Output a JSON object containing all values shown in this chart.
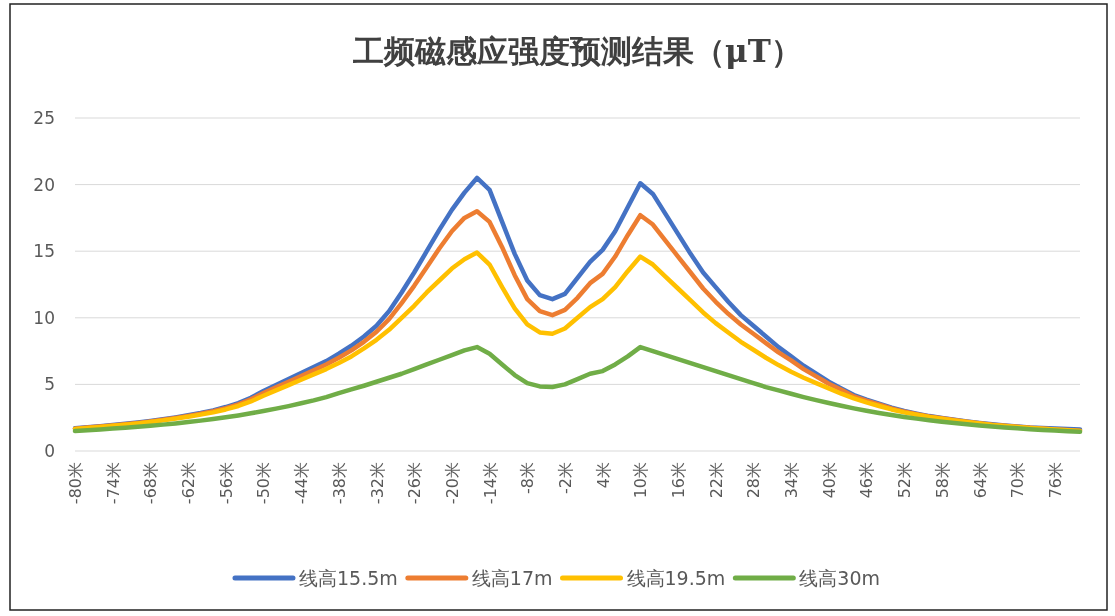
{
  "chart_data": {
    "type": "line",
    "title": "工频磁感应强度预测结果（μT）",
    "categories": [
      "-80米",
      null,
      null,
      "-74米",
      null,
      null,
      "-68米",
      null,
      null,
      "-62米",
      null,
      null,
      "-56米",
      null,
      null,
      "-50米",
      null,
      null,
      "-44米",
      null,
      null,
      "-38米",
      null,
      null,
      "-32米",
      null,
      null,
      "-26米",
      null,
      null,
      "-20米",
      null,
      null,
      "-14米",
      null,
      null,
      "-8米",
      null,
      null,
      "-2米",
      null,
      null,
      "4米",
      null,
      null,
      "10米",
      null,
      null,
      "16米",
      null,
      null,
      "22米",
      null,
      null,
      "28米",
      null,
      null,
      "34米",
      null,
      null,
      "40米",
      null,
      null,
      "46米",
      null,
      null,
      "52米",
      null,
      null,
      "58米",
      null,
      null,
      "64米",
      null,
      null,
      "70米",
      null,
      null,
      "76米",
      null,
      null
    ],
    "series": [
      {
        "name": "线高15.5m",
        "color": "#4472c4",
        "values": [
          1.7,
          1.78,
          1.86,
          1.95,
          2.04,
          2.14,
          2.25,
          2.38,
          2.52,
          2.68,
          2.85,
          3.05,
          3.3,
          3.6,
          4.0,
          4.5,
          4.95,
          5.4,
          5.85,
          6.3,
          6.75,
          7.3,
          7.9,
          8.6,
          9.4,
          10.5,
          11.9,
          13.4,
          15.0,
          16.6,
          18.1,
          19.4,
          20.5,
          19.6,
          17.2,
          14.8,
          12.8,
          11.7,
          11.4,
          11.8,
          13.0,
          14.2,
          15.1,
          16.5,
          18.3,
          20.1,
          19.3,
          17.8,
          16.3,
          14.8,
          13.4,
          12.3,
          11.2,
          10.2,
          9.4,
          8.6,
          7.8,
          7.1,
          6.4,
          5.8,
          5.2,
          4.7,
          4.2,
          3.85,
          3.55,
          3.25,
          3.0,
          2.8,
          2.62,
          2.48,
          2.35,
          2.22,
          2.1,
          2.0,
          1.92,
          1.84,
          1.76,
          1.72,
          1.68,
          1.66,
          1.62
        ]
      },
      {
        "name": "线高17m",
        "color": "#ed7d31",
        "values": [
          1.68,
          1.76,
          1.84,
          1.92,
          2.01,
          2.11,
          2.22,
          2.34,
          2.48,
          2.63,
          2.8,
          2.99,
          3.22,
          3.5,
          3.88,
          4.35,
          4.78,
          5.2,
          5.62,
          6.05,
          6.5,
          7.0,
          7.55,
          8.2,
          8.95,
          9.9,
          11.1,
          12.4,
          13.8,
          15.2,
          16.5,
          17.5,
          18.0,
          17.2,
          15.3,
          13.2,
          11.4,
          10.5,
          10.2,
          10.6,
          11.5,
          12.6,
          13.3,
          14.6,
          16.2,
          17.7,
          17.0,
          15.8,
          14.6,
          13.4,
          12.2,
          11.2,
          10.3,
          9.5,
          8.8,
          8.1,
          7.4,
          6.8,
          6.15,
          5.6,
          5.05,
          4.6,
          4.1,
          3.78,
          3.5,
          3.2,
          2.96,
          2.77,
          2.6,
          2.46,
          2.33,
          2.2,
          2.08,
          1.98,
          1.9,
          1.82,
          1.75,
          1.69,
          1.62,
          1.57,
          1.52
        ]
      },
      {
        "name": "线高19.5m",
        "color": "#ffc000",
        "values": [
          1.65,
          1.73,
          1.81,
          1.89,
          1.98,
          2.07,
          2.18,
          2.3,
          2.43,
          2.57,
          2.73,
          2.9,
          3.12,
          3.38,
          3.72,
          4.15,
          4.55,
          4.95,
          5.35,
          5.75,
          6.15,
          6.6,
          7.1,
          7.7,
          8.35,
          9.1,
          10.0,
          10.9,
          11.9,
          12.8,
          13.7,
          14.4,
          14.9,
          14.0,
          12.3,
          10.7,
          9.5,
          8.9,
          8.8,
          9.2,
          10.0,
          10.8,
          11.4,
          12.3,
          13.5,
          14.6,
          14.0,
          13.1,
          12.2,
          11.3,
          10.4,
          9.6,
          8.9,
          8.2,
          7.6,
          7.0,
          6.45,
          5.95,
          5.5,
          5.1,
          4.7,
          4.3,
          3.95,
          3.65,
          3.38,
          3.12,
          2.9,
          2.72,
          2.55,
          2.42,
          2.3,
          2.18,
          2.06,
          1.96,
          1.88,
          1.8,
          1.73,
          1.67,
          1.61,
          1.56,
          1.51
        ]
      },
      {
        "name": "线高30m",
        "color": "#70ad47",
        "values": [
          1.5,
          1.56,
          1.62,
          1.68,
          1.75,
          1.82,
          1.9,
          1.98,
          2.07,
          2.17,
          2.28,
          2.4,
          2.53,
          2.67,
          2.83,
          3.0,
          3.18,
          3.37,
          3.58,
          3.8,
          4.05,
          4.35,
          4.62,
          4.9,
          5.2,
          5.5,
          5.8,
          6.15,
          6.5,
          6.85,
          7.2,
          7.55,
          7.8,
          7.3,
          6.5,
          5.7,
          5.1,
          4.85,
          4.8,
          5.0,
          5.4,
          5.8,
          6.0,
          6.5,
          7.1,
          7.8,
          7.5,
          7.2,
          6.9,
          6.6,
          6.3,
          6.0,
          5.7,
          5.4,
          5.1,
          4.8,
          4.55,
          4.3,
          4.05,
          3.82,
          3.6,
          3.4,
          3.2,
          3.02,
          2.85,
          2.7,
          2.56,
          2.43,
          2.31,
          2.2,
          2.1,
          2.01,
          1.92,
          1.84,
          1.77,
          1.7,
          1.64,
          1.58,
          1.53,
          1.48,
          1.44
        ]
      }
    ],
    "ylim": [
      0,
      25
    ],
    "yticks": [
      0,
      5,
      10,
      15,
      20,
      25
    ],
    "grid": "y",
    "legend": "bottom",
    "marker": "none",
    "line_style": "solid"
  }
}
